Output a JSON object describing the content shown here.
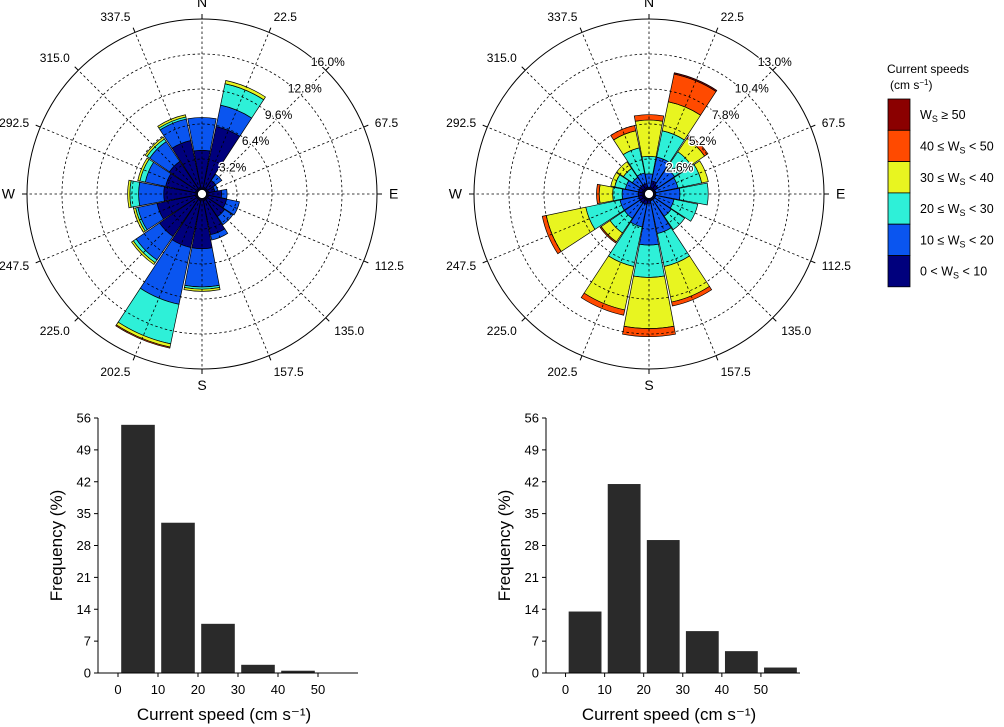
{
  "chart_data": [
    {
      "type": "windrose",
      "title": "",
      "directions": [
        0,
        22.5,
        45,
        67.5,
        90,
        112.5,
        135,
        157.5,
        180,
        202.5,
        225,
        247.5,
        270,
        292.5,
        315,
        337.5
      ],
      "direction_labels": [
        "N",
        "22.5",
        "",
        "67.5",
        "E",
        "112.5",
        "135.0",
        "157.5",
        "S",
        "202.5",
        "225.0",
        "247.5",
        "W",
        "292.5",
        "315.0",
        "337.5"
      ],
      "radial_ticks": [
        "3.2%",
        "6.4%",
        "9.6%",
        "12.8%",
        "16.0%"
      ],
      "rmax": 16.0,
      "bins": [
        "0 < Ws < 10",
        "10 ≤ Ws < 20",
        "20 ≤ Ws < 30",
        "30 ≤ Ws < 40",
        "40 ≤ Ws < 50",
        "Ws ≥ 50"
      ],
      "cumulative": [
        [
          4.0,
          7.0,
          7.0,
          7.0,
          7.0,
          7.0
        ],
        [
          6.3,
          8.3,
          10.3,
          10.6,
          10.6,
          10.6
        ],
        [
          1.5,
          2.2,
          2.2,
          2.2,
          2.2,
          2.2
        ],
        [
          1.2,
          1.5,
          1.5,
          1.5,
          1.5,
          1.5
        ],
        [
          1.8,
          2.3,
          2.3,
          2.3,
          2.3,
          2.3
        ],
        [
          2.3,
          3.5,
          3.5,
          3.5,
          3.5,
          3.5
        ],
        [
          2.5,
          3.4,
          3.4,
          3.4,
          3.4,
          3.4
        ],
        [
          3.8,
          4.3,
          4.3,
          4.3,
          4.3,
          4.3
        ],
        [
          5.0,
          8.5,
          8.7,
          8.9,
          8.9,
          8.9
        ],
        [
          5.0,
          10.3,
          14.0,
          14.3,
          14.4,
          14.4
        ],
        [
          4.7,
          7.3,
          7.6,
          7.8,
          7.8,
          7.8
        ],
        [
          4.2,
          6.0,
          6.2,
          6.4,
          6.4,
          6.4
        ],
        [
          3.5,
          5.8,
          6.6,
          6.8,
          6.8,
          6.8
        ],
        [
          3.4,
          5.3,
          5.8,
          6.0,
          6.0,
          6.0
        ],
        [
          3.6,
          5.8,
          6.1,
          6.3,
          6.3,
          6.3
        ],
        [
          5.0,
          7.0,
          7.2,
          7.4,
          7.4,
          7.4
        ]
      ]
    },
    {
      "type": "windrose",
      "title": "",
      "directions": [
        0,
        22.5,
        45,
        67.5,
        90,
        112.5,
        135,
        157.5,
        180,
        202.5,
        225,
        247.5,
        270,
        292.5,
        315,
        337.5
      ],
      "direction_labels": [
        "N",
        "22.5",
        "",
        "67.5",
        "E",
        "112.5",
        "135.0",
        "157.5",
        "S",
        "202.5",
        "225.0",
        "247.5",
        "W",
        "292.5",
        "315.0",
        "337.5"
      ],
      "radial_ticks": [
        "2.6%",
        "5.2%",
        "7.8%",
        "10.4%",
        "13.0%"
      ],
      "rmax": 13.0,
      "bins": [
        "0 < Ws < 10",
        "10 ≤ Ws < 20",
        "20 ≤ Ws < 30",
        "30 ≤ Ws < 40",
        "40 ≤ Ws < 50",
        "Ws ≥ 50"
      ],
      "cumulative": [
        [
          0.5,
          1.5,
          2.8,
          5.5,
          5.9,
          5.9
        ],
        [
          1.0,
          2.8,
          4.8,
          7.0,
          9.1,
          9.2
        ],
        [
          0.8,
          2.3,
          3.8,
          5.0,
          5.3,
          5.3
        ],
        [
          0.5,
          2.2,
          4.0,
          4.5,
          4.5,
          4.5
        ],
        [
          0.5,
          2.3,
          4.4,
          4.4,
          4.4,
          4.4
        ],
        [
          0.5,
          1.9,
          3.7,
          3.7,
          3.7,
          3.7
        ],
        [
          0.5,
          2.0,
          3.2,
          3.2,
          3.2,
          3.2
        ],
        [
          0.5,
          3.0,
          5.5,
          8.2,
          8.5,
          8.5
        ],
        [
          0.7,
          3.8,
          6.2,
          10.0,
          10.6,
          10.6
        ],
        [
          0.8,
          2.5,
          5.5,
          8.8,
          9.2,
          9.2
        ],
        [
          0.8,
          2.2,
          3.5,
          4.3,
          4.4,
          4.4
        ],
        [
          0.8,
          2.2,
          4.8,
          7.8,
          8.1,
          8.1
        ],
        [
          0.8,
          2.0,
          2.7,
          3.7,
          3.9,
          3.9
        ],
        [
          0.8,
          1.8,
          2.6,
          2.9,
          2.9,
          2.9
        ],
        [
          0.8,
          1.5,
          2.3,
          2.9,
          2.9,
          2.9
        ],
        [
          0.8,
          1.6,
          3.5,
          4.8,
          5.2,
          5.2
        ]
      ]
    },
    {
      "type": "bar",
      "title": "",
      "categories": [
        "0-10",
        "10-20",
        "20-30",
        "30-40",
        "40-50",
        "≥50"
      ],
      "bin_edges": [
        0,
        10,
        20,
        30,
        40,
        50,
        60
      ],
      "values": [
        54.5,
        33.0,
        10.8,
        1.8,
        0.5,
        0
      ],
      "xlabel": "Current speed (cm s⁻¹)",
      "ylabel": "Frequency (%)",
      "xticks": [
        0,
        10,
        20,
        30,
        40,
        50
      ],
      "yticks": [
        0,
        7,
        14,
        21,
        28,
        35,
        42,
        49,
        56
      ],
      "xlim": [
        -5,
        60
      ],
      "ylim": [
        0,
        56
      ]
    },
    {
      "type": "bar",
      "title": "",
      "categories": [
        "0-10",
        "10-20",
        "20-30",
        "30-40",
        "40-50",
        "≥50"
      ],
      "bin_edges": [
        0,
        10,
        20,
        30,
        40,
        50,
        60
      ],
      "values": [
        13.5,
        41.5,
        29.2,
        9.2,
        4.8,
        1.2
      ],
      "xlabel": "Current speed (cm s⁻¹)",
      "ylabel": "Frequency (%)",
      "xticks": [
        0,
        10,
        20,
        30,
        40,
        50
      ],
      "yticks": [
        0,
        7,
        14,
        21,
        28,
        35,
        42,
        49,
        56
      ],
      "xlim": [
        -5,
        60
      ],
      "ylim": [
        0,
        56
      ]
    }
  ],
  "legend": {
    "title_line1": "Current speeds",
    "title_line2_prefix": "(cm s",
    "title_line2_sup": "−1",
    "title_line2_suffix": ")",
    "items": [
      {
        "pre": "W",
        "sub": "S",
        "post": " ≥ 50",
        "color": "#8b0000"
      },
      {
        "pre": "40 ≤ W",
        "sub": "S",
        "post": " < 50",
        "color": "#ff4a00"
      },
      {
        "pre": "30 ≤ W",
        "sub": "S",
        "post": " < 40",
        "color": "#e8f520"
      },
      {
        "pre": "20 ≤ W",
        "sub": "S",
        "post": " < 30",
        "color": "#2ef0d8"
      },
      {
        "pre": "10 ≤ W",
        "sub": "S",
        "post": " < 20",
        "color": "#0a55f0"
      },
      {
        "pre": "0 < W",
        "sub": "S",
        "post": " < 10",
        "color": "#00007d"
      }
    ]
  },
  "bin_colors": [
    "#00007d",
    "#0a55f0",
    "#2ef0d8",
    "#e8f520",
    "#ff4a00",
    "#8b0000"
  ],
  "bar_color": "#2a2a2a"
}
